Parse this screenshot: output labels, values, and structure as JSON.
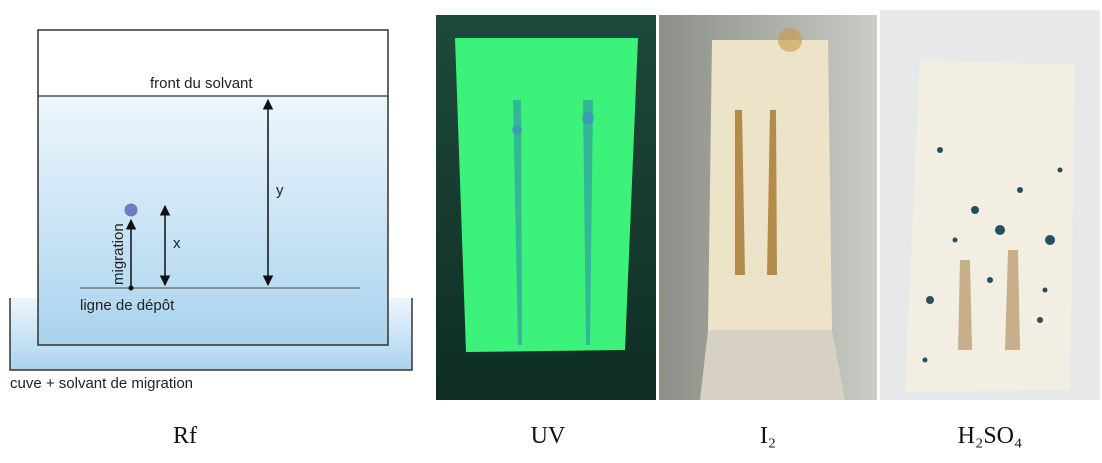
{
  "diagram": {
    "solvent_front": "front du solvant",
    "y_label": "y",
    "migration_label": "migration",
    "x_label": "x",
    "deposit_line": "ligne de dépôt",
    "tank_label": "cuve + solvant de migration"
  },
  "captions": [
    "Rf",
    "UV",
    "I₂",
    "H₂SO₄"
  ]
}
